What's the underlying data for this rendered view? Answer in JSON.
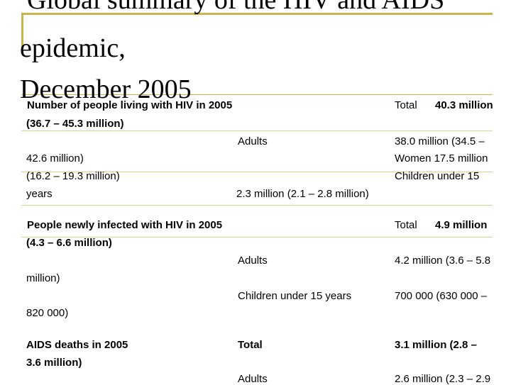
{
  "slide": {
    "title_line1": "Global summary of the HIV and AIDS",
    "title_line2": "epidemic,",
    "title_line3": "December 2005"
  },
  "living": {
    "heading": "Number of people living with HIV in 2005",
    "total_label": "Total",
    "total_value": "40.3 million",
    "total_range": "(36.7 – 45.3 million)",
    "adults_label": "Adults",
    "adults_value_part1": "38.0 million (34.5 –",
    "adults_value_part2": "42.6 million)",
    "women_value": "Women 17.5 million",
    "women_range": "(16.2 – 19.3 million)",
    "children_label_part1": "Children under 15",
    "children_label_part2": "years",
    "children_value": "2.3 million (2.1 – 2.8 million)"
  },
  "infected": {
    "heading": "People newly infected with HIV in 2005",
    "total_label": "Total",
    "total_value": "4.9 million",
    "total_range": "(4.3 – 6.6 million)",
    "adults_label": "Adults",
    "adults_value_part1": "4.2 million (3.6 – 5.8",
    "adults_value_part2": "million)",
    "children_label": "Children under 15 years",
    "children_value_part1": "700 000 (630 000 –",
    "children_value_part2": "820 000)"
  },
  "deaths": {
    "heading": "AIDS deaths in 2005",
    "total_label": "Total",
    "total_value_part1": "3.1 million (2.8 –",
    "total_value_part2": "3.6 million)",
    "adults_label": "Adults",
    "adults_value": "2.6 million (2.3 – 2.9"
  },
  "colors": {
    "accent": "#c8b44a"
  }
}
